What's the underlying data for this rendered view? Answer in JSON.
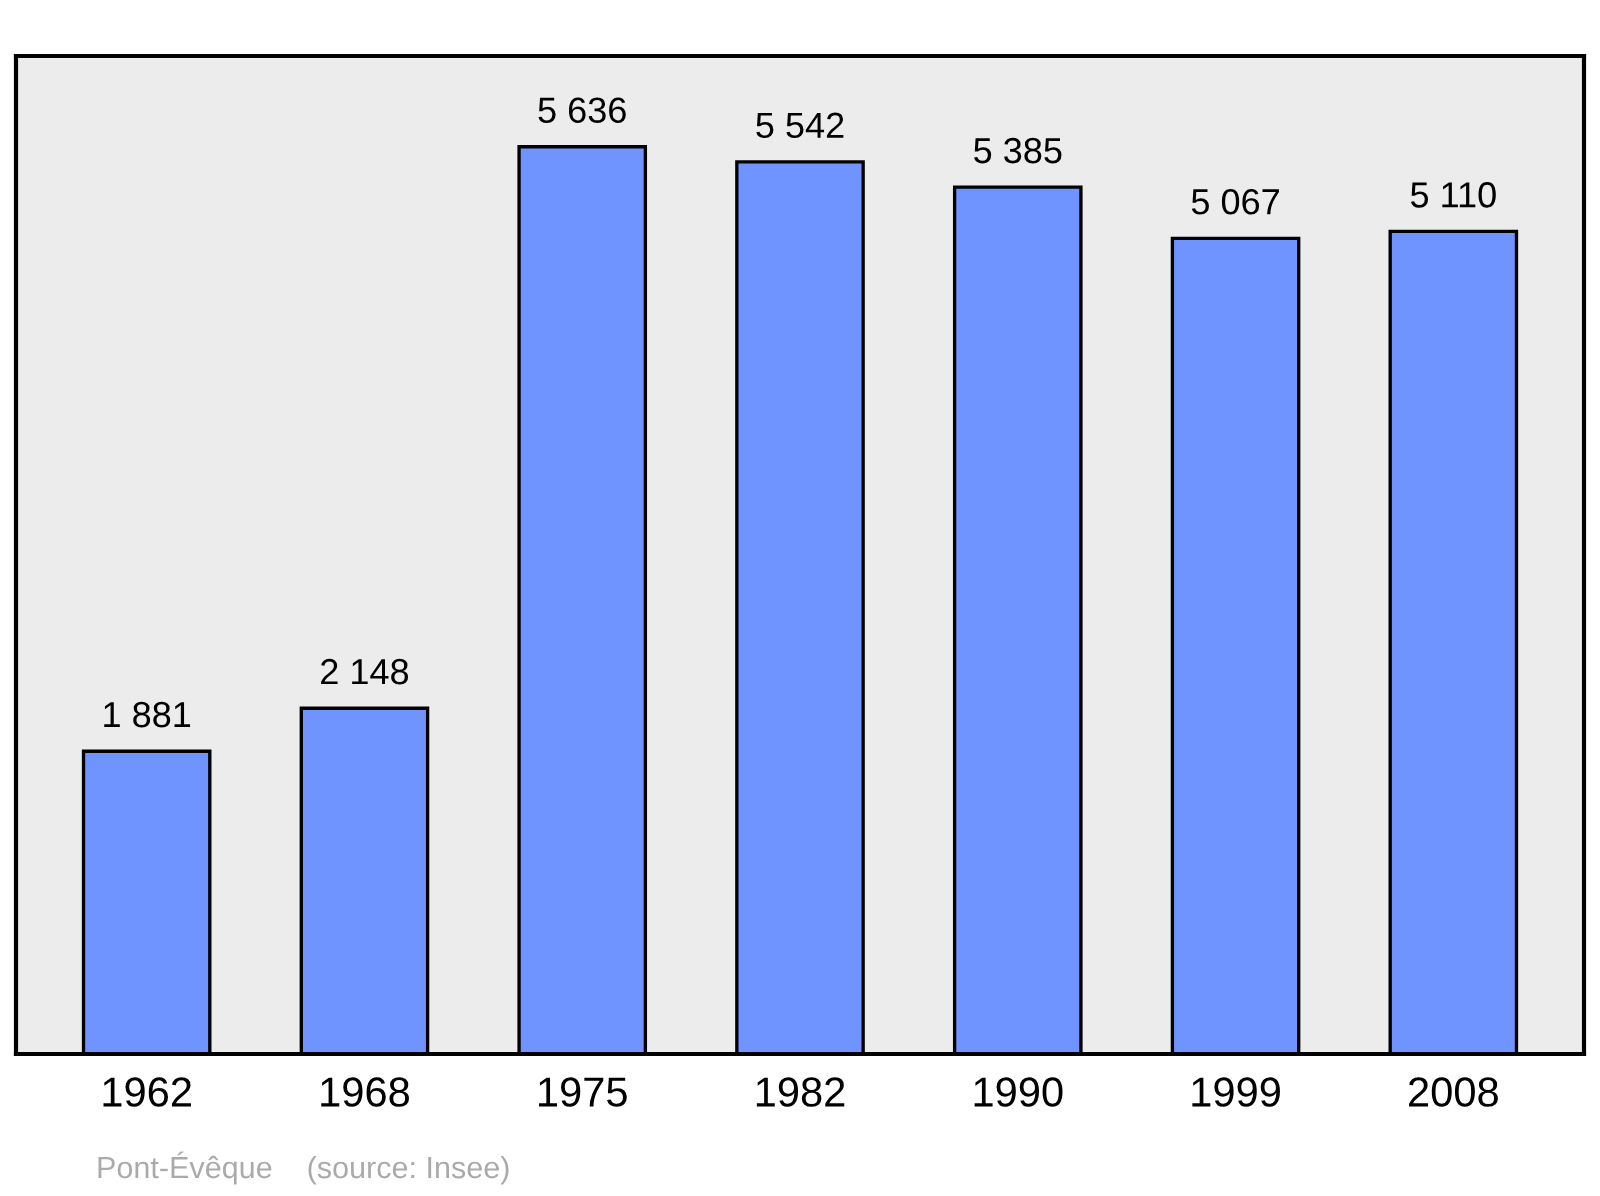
{
  "chart_data": {
    "type": "bar",
    "categories": [
      "1962",
      "1968",
      "1975",
      "1982",
      "1990",
      "1999",
      "2008"
    ],
    "values": [
      1881,
      2148,
      5636,
      5542,
      5385,
      5067,
      5110
    ],
    "value_labels": [
      "1 881",
      "2 148",
      "5 636",
      "5 542",
      "5 385",
      "5 067",
      "5 110"
    ],
    "color": "#7094ff",
    "ylim": [
      0,
      6200
    ],
    "grid": false,
    "annotations": [
      "Pont-Évêque    (source: Insee)"
    ]
  }
}
